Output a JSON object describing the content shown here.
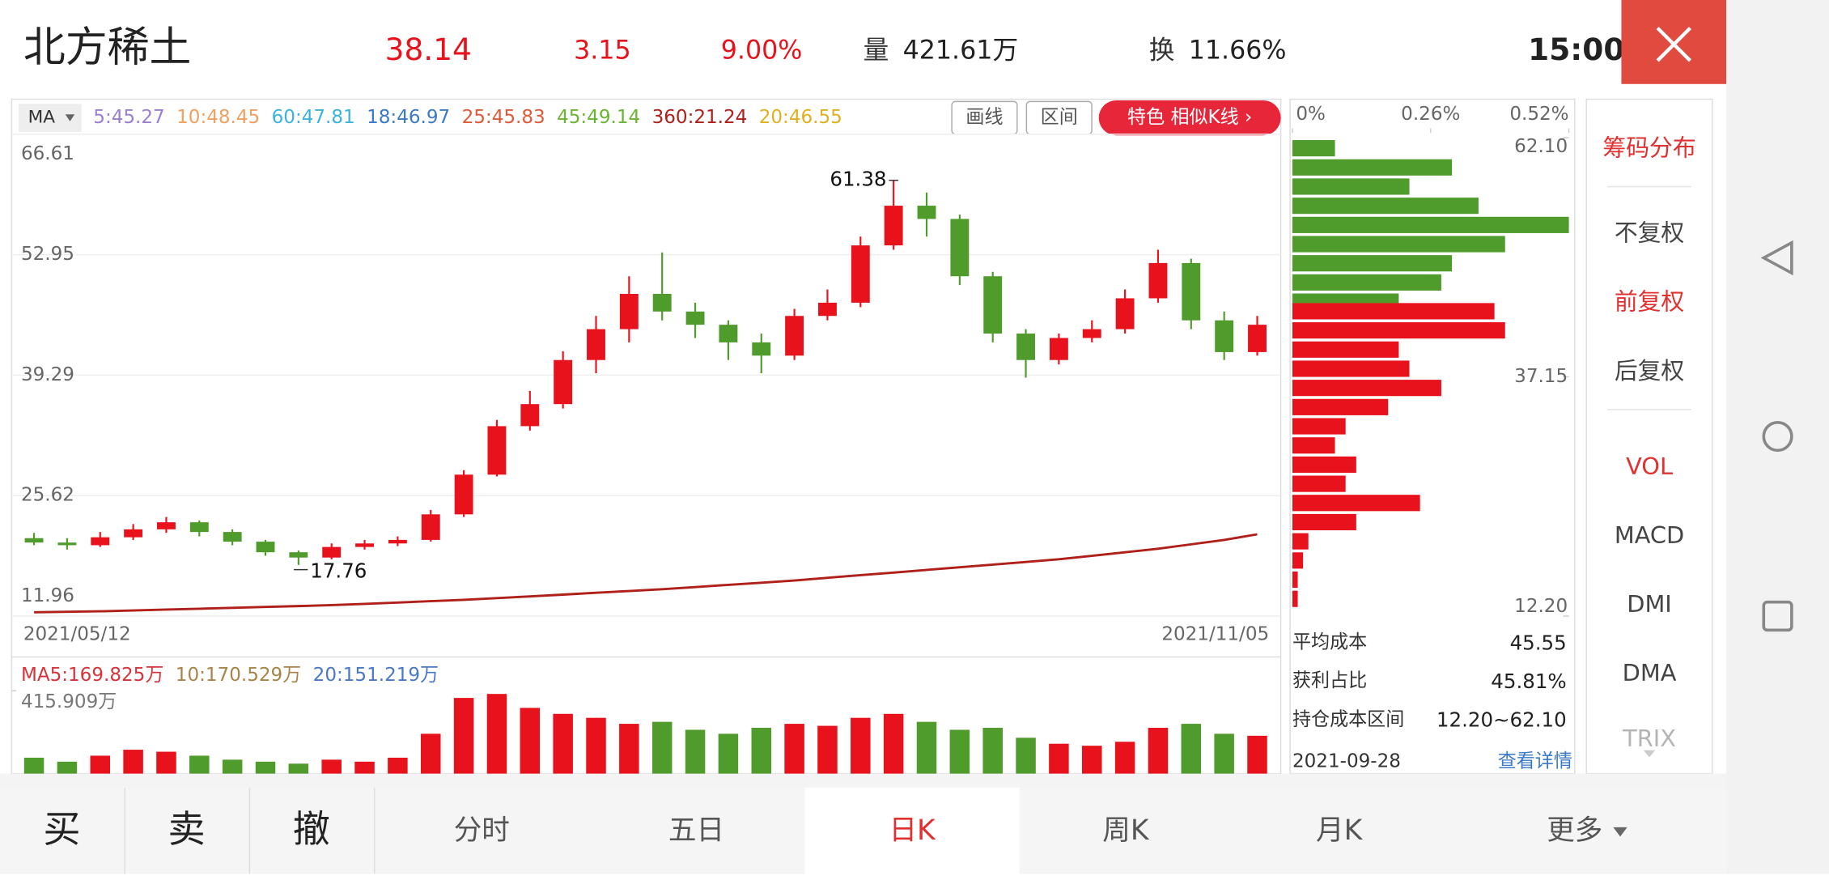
{
  "header": {
    "name": "北方稀土",
    "price": "38.14",
    "change": "3.15",
    "change_pct": "9.00%",
    "volume_label": "量",
    "volume": "421.61万",
    "turnover_label": "换",
    "turnover": "11.66%",
    "time": "15:00"
  },
  "chart_data": [
    {
      "type": "candlestick",
      "indicator": "MA",
      "buttons": [
        "画线",
        "区间"
      ],
      "feature_button": "特色  相似K线 ›",
      "x_start": "2021/05/12",
      "x_end": "2021/11/05",
      "ylim": [
        11.96,
        66.61
      ],
      "yticks": [
        66.61,
        52.95,
        39.29,
        25.62,
        11.96
      ],
      "up_color": "#e8121c",
      "down_color": "#4f9b2c",
      "open": [
        20.8,
        20.3,
        20.0,
        20.9,
        21.8,
        22.6,
        21.5,
        20.4,
        19.2,
        18.6,
        19.8,
        20.2,
        20.6,
        23.5,
        28.0,
        33.5,
        36.0,
        41.0,
        44.5,
        48.5,
        46.5,
        45.0,
        43.0,
        41.5,
        46.0,
        47.5,
        54.0,
        58.5,
        57.0,
        50.5,
        44.0,
        41.0,
        43.5,
        44.5,
        48.0,
        52.0,
        45.5,
        41.9
      ],
      "close": [
        20.3,
        20.0,
        20.9,
        21.8,
        22.6,
        21.5,
        20.4,
        19.2,
        18.6,
        19.8,
        20.2,
        20.6,
        23.5,
        28.0,
        33.5,
        36.0,
        41.0,
        44.5,
        48.5,
        46.5,
        45.0,
        43.0,
        41.5,
        46.0,
        47.5,
        54.0,
        58.5,
        57.0,
        50.5,
        44.0,
        41.0,
        43.5,
        44.5,
        48.0,
        52.0,
        45.5,
        41.9,
        45.0
      ],
      "high": [
        21.4,
        20.8,
        21.5,
        22.4,
        23.2,
        22.8,
        21.8,
        20.6,
        19.4,
        20.2,
        20.6,
        21.0,
        24.0,
        28.5,
        34.2,
        37.5,
        42.0,
        46.0,
        50.5,
        53.2,
        47.5,
        45.5,
        44.0,
        46.8,
        49.0,
        55.0,
        61.38,
        60.0,
        57.5,
        51.0,
        44.5,
        44.0,
        45.5,
        49.0,
        53.5,
        52.5,
        46.5,
        46.0
      ],
      "low": [
        20.0,
        19.5,
        19.8,
        20.6,
        21.4,
        21.0,
        20.0,
        18.8,
        17.76,
        18.4,
        19.5,
        19.9,
        20.4,
        23.2,
        27.8,
        33.0,
        35.5,
        39.5,
        43.0,
        45.5,
        43.5,
        41.0,
        39.5,
        41.0,
        45.5,
        47.0,
        53.5,
        55.0,
        49.5,
        43.0,
        39.0,
        40.5,
        43.0,
        44.0,
        47.5,
        44.5,
        41.0,
        41.5
      ],
      "series": [
        {
          "name": "5:45.27",
          "color": "#9b7fd4"
        },
        {
          "name": "10:48.45",
          "color": "#f0a060"
        },
        {
          "name": "60:47.81",
          "color": "#3bb3e0"
        },
        {
          "name": "18:46.97",
          "color": "#3a7ac8"
        },
        {
          "name": "25:45.83",
          "color": "#e05a3a"
        },
        {
          "name": "45:49.14",
          "color": "#6ab534"
        },
        {
          "name": "360:21.24",
          "color": "#b0201a",
          "values": [
            12.4,
            12.45,
            12.5,
            12.6,
            12.7,
            12.8,
            12.9,
            13.0,
            13.1,
            13.2,
            13.35,
            13.5,
            13.65,
            13.8,
            14.0,
            14.2,
            14.4,
            14.6,
            14.8,
            15.0,
            15.25,
            15.5,
            15.75,
            16.0,
            16.3,
            16.6,
            16.9,
            17.2,
            17.5,
            17.8,
            18.1,
            18.4,
            18.8,
            19.2,
            19.6,
            20.1,
            20.6,
            21.24
          ]
        },
        {
          "name": "20:46.55",
          "color": "#e0b020"
        }
      ],
      "volume": {
        "values": [
          80,
          60,
          90,
          120,
          110,
          90,
          70,
          60,
          50,
          70,
          60,
          80,
          200,
          380,
          400,
          330,
          300,
          280,
          250,
          260,
          220,
          200,
          230,
          250,
          240,
          280,
          300,
          260,
          220,
          230,
          180,
          150,
          140,
          160,
          230,
          250,
          200,
          190
        ],
        "ylim": [
          0,
          415.909
        ],
        "yticks": [
          {
            "value": 415.909,
            "label": "415.909万"
          }
        ],
        "legend": [
          {
            "name": "MA5:169.825万",
            "color": "#d6333a"
          },
          {
            "name": "10:170.529万",
            "color": "#a8844a"
          },
          {
            "name": "20:151.219万",
            "color": "#4a78c8"
          }
        ]
      }
    },
    {
      "type": "hbar",
      "xlim": [
        0,
        0.52
      ],
      "xticks": [
        {
          "value": 0,
          "label": "0%"
        },
        {
          "value": 0.26,
          "label": "0.26%"
        },
        {
          "value": 0.52,
          "label": "0.52%"
        }
      ],
      "ylim": [
        12.2,
        62.1
      ],
      "yticks": [
        {
          "value": 62.1,
          "label": "62.10"
        },
        37.15,
        {
          "value": 12.2,
          "label": "12.20"
        }
      ],
      "prices": [
        61,
        59,
        57,
        55,
        53,
        51,
        49,
        47,
        45,
        44,
        42,
        40,
        38,
        36,
        34,
        32,
        30,
        28,
        26,
        24,
        22,
        20,
        18,
        16,
        14
      ],
      "values": [
        0.08,
        0.3,
        0.22,
        0.35,
        0.52,
        0.4,
        0.3,
        0.28,
        0.2,
        0.38,
        0.4,
        0.2,
        0.22,
        0.28,
        0.18,
        0.1,
        0.08,
        0.12,
        0.1,
        0.24,
        0.12,
        0.03,
        0.02,
        0.01,
        0.01
      ],
      "colors": [
        "#4f9b2c",
        "#4f9b2c",
        "#4f9b2c",
        "#4f9b2c",
        "#4f9b2c",
        "#4f9b2c",
        "#4f9b2c",
        "#4f9b2c",
        "#4f9b2c",
        "#e8121c",
        "#e8121c",
        "#e8121c",
        "#e8121c",
        "#e8121c",
        "#e8121c",
        "#e8121c",
        "#e8121c",
        "#e8121c",
        "#e8121c",
        "#e8121c",
        "#e8121c",
        "#e8121c",
        "#e8121c",
        "#e8121c",
        "#e8121c"
      ]
    }
  ],
  "stats": {
    "rows": [
      [
        "平均成本",
        "45.55"
      ],
      [
        "获利占比",
        "45.81%"
      ],
      [
        "持仓成本区间",
        "12.20~62.10"
      ]
    ],
    "date": "2021-09-28",
    "link": "查看详情"
  },
  "menu": [
    {
      "label": "筹码分布",
      "selected": true
    },
    {
      "label": "不复权",
      "selected": false
    },
    {
      "label": "前复权",
      "selected": true
    },
    {
      "label": "后复权",
      "selected": false
    },
    {
      "label": "VOL",
      "selected": true
    },
    {
      "label": "MACD",
      "selected": false
    },
    {
      "label": "DMI",
      "selected": false
    },
    {
      "label": "DMA",
      "selected": false
    },
    {
      "label": "TRIX",
      "selected": false
    }
  ],
  "tabs": [
    {
      "label": "买",
      "selected": false
    },
    {
      "label": "卖",
      "selected": false
    },
    {
      "label": "撤",
      "selected": false
    },
    {
      "label": "分时",
      "selected": false
    },
    {
      "label": "五日",
      "selected": false
    },
    {
      "label": "日K",
      "selected": true
    },
    {
      "label": "周K",
      "selected": false
    },
    {
      "label": "月K",
      "selected": false
    },
    {
      "label": "更多",
      "selected": false
    }
  ]
}
